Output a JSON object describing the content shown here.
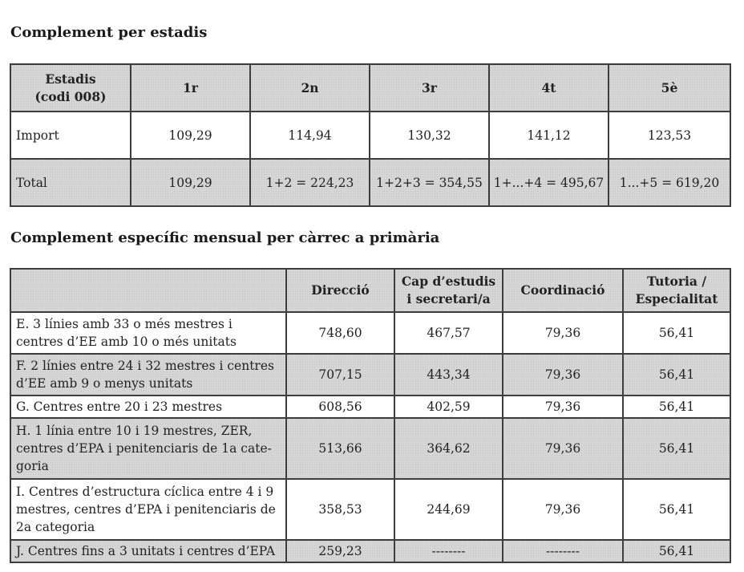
{
  "section1": {
    "title": "Complement per estadis",
    "header": [
      "Estadis\n(codi 008)",
      "1r",
      "2n",
      "3r",
      "4t",
      "5è"
    ],
    "rows": [
      {
        "label": "Import",
        "cells": [
          "109,29",
          "114,94",
          "130,32",
          "141,12",
          "123,53"
        ]
      },
      {
        "label": "Total",
        "cells": [
          "109,29",
          "1+2 = 224,23",
          "1+2+3 = 354,55",
          "1+...+4 = 495,67",
          "1...+5 = 619,20"
        ]
      }
    ]
  },
  "section2": {
    "title": "Complement específic mensual per càrrec a primària",
    "header": [
      "",
      "Direcció",
      "Cap d’estudis i secretari/a",
      "Coordinació",
      "Tutoria / Especialitat"
    ],
    "rows": [
      {
        "label": "E. 3 línies amb 33 o més mestres i centres d’EE amb 10 o més unitats",
        "cells": [
          "748,60",
          "467,57",
          "79,36",
          "56,41"
        ]
      },
      {
        "label": "F. 2 línies entre 24 i 32 mestres i centres d’EE amb 9 o menys unitats",
        "cells": [
          "707,15",
          "443,34",
          "79,36",
          "56,41"
        ]
      },
      {
        "label": "G. Centres entre 20 i 23 mestres",
        "cells": [
          "608,56",
          "402,59",
          "79,36",
          "56,41"
        ]
      },
      {
        "label": "H. 1 línia entre 10 i 19 mestres, ZER, centres d’EPA i penitenciaris de 1a cate-goria",
        "cells": [
          "513,66",
          "364,62",
          "79,36",
          "56,41"
        ]
      },
      {
        "label": "I. Centres d’estructura cíclica entre 4 i 9 mestres, centres d’EPA i penitenciaris de 2a categoria",
        "cells": [
          "358,53",
          "244,69",
          "79,36",
          "56,41"
        ]
      },
      {
        "label": "J. Centres fins a 3 unitats i centres d’EPA",
        "cells": [
          "259,23",
          "--------",
          "--------",
          "56,41"
        ]
      }
    ]
  }
}
